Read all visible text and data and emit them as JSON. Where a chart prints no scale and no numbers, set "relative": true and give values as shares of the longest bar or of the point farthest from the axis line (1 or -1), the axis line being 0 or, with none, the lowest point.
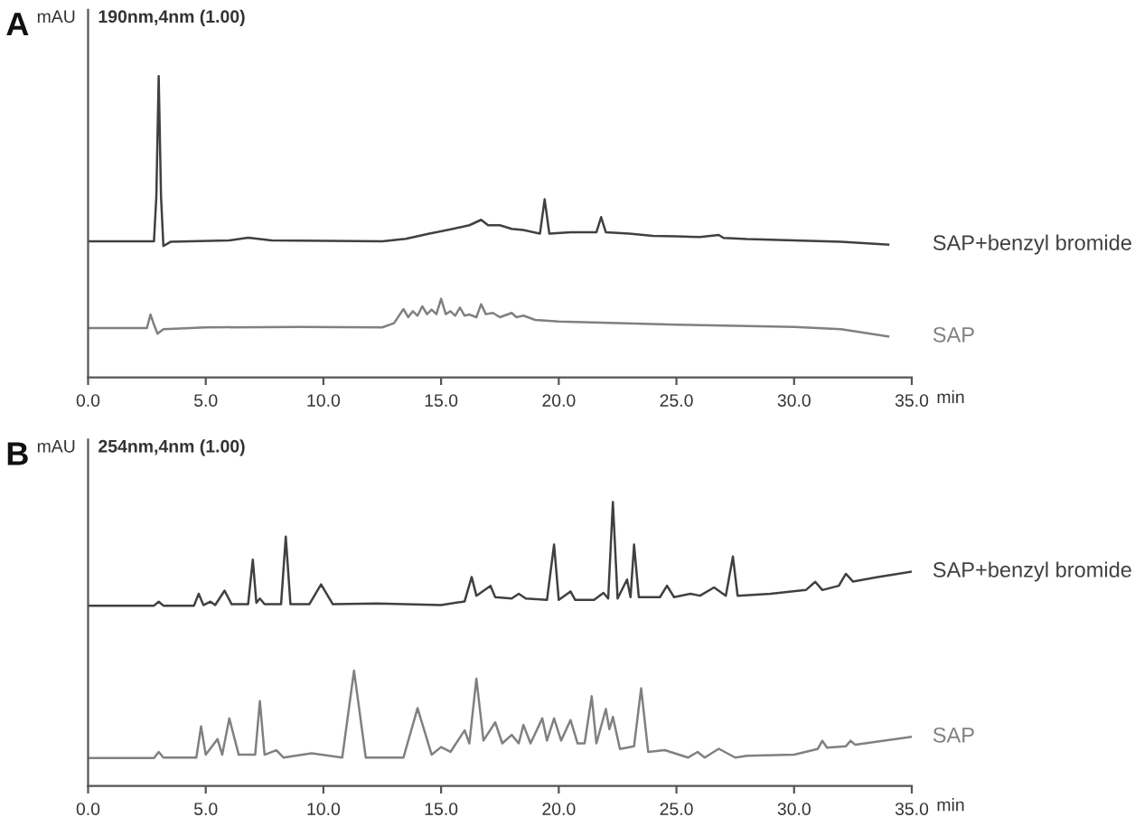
{
  "chart_data": [
    {
      "type": "line",
      "title": "A",
      "subtitle": "190nm,4nm (1.00)",
      "ylabel": "mAU",
      "xlabel": "min",
      "relative": true,
      "xlim": [
        0,
        35
      ],
      "xticks": [
        {
          "value": 0,
          "label": "0.0"
        },
        {
          "value": 5,
          "label": "5.0"
        },
        {
          "value": 10,
          "label": "10.0"
        },
        {
          "value": 15,
          "label": "15.0"
        },
        {
          "value": 20,
          "label": "20.0"
        },
        {
          "value": 25,
          "label": "25.0"
        },
        {
          "value": 30,
          "label": "30.0"
        },
        {
          "value": 35,
          "label": "35.0"
        }
      ],
      "grid": false,
      "legend": false,
      "marker": "none",
      "line_style": "solid",
      "series": [
        {
          "name": "SAP+benzyl bromide",
          "color": "#404040",
          "x": [
            0,
            2.8,
            2.9,
            3.0,
            3.1,
            3.2,
            3.5,
            6.0,
            6.8,
            7.8,
            12.5,
            13.5,
            14.5,
            15.5,
            16.2,
            16.7,
            17.0,
            17.5,
            18.0,
            18.5,
            19.2,
            19.4,
            19.6,
            20.5,
            21.6,
            21.8,
            22.0,
            23.0,
            24.0,
            25.0,
            26.0,
            26.8,
            27.0,
            28.0,
            30.0,
            32.0,
            34.0
          ],
          "values": [
            0.452,
            0.452,
            0.6,
            1.0,
            0.6,
            0.436,
            0.45,
            0.455,
            0.464,
            0.455,
            0.452,
            0.46,
            0.477,
            0.493,
            0.505,
            0.523,
            0.505,
            0.505,
            0.493,
            0.489,
            0.477,
            0.591,
            0.477,
            0.482,
            0.482,
            0.532,
            0.482,
            0.477,
            0.47,
            0.468,
            0.466,
            0.473,
            0.463,
            0.459,
            0.455,
            0.45,
            0.441
          ]
        },
        {
          "name": "SAP",
          "color": "#808080",
          "x": [
            0,
            2.5,
            2.65,
            2.8,
            2.95,
            3.2,
            5.0,
            9.0,
            12.5,
            13.0,
            13.4,
            13.6,
            13.8,
            14.0,
            14.2,
            14.4,
            14.6,
            14.8,
            15.0,
            15.2,
            15.4,
            15.6,
            15.8,
            16.0,
            16.2,
            16.5,
            16.7,
            16.9,
            17.2,
            17.5,
            18.0,
            18.2,
            18.5,
            19.0,
            20.0,
            25.0,
            30.0,
            32.0,
            34.0
          ],
          "values": [
            0.164,
            0.164,
            0.209,
            0.175,
            0.145,
            0.16,
            0.166,
            0.168,
            0.166,
            0.18,
            0.227,
            0.2,
            0.22,
            0.205,
            0.236,
            0.21,
            0.225,
            0.21,
            0.261,
            0.21,
            0.22,
            0.205,
            0.232,
            0.205,
            0.209,
            0.2,
            0.243,
            0.21,
            0.214,
            0.2,
            0.214,
            0.2,
            0.205,
            0.191,
            0.186,
            0.175,
            0.168,
            0.16,
            0.136
          ]
        }
      ]
    },
    {
      "type": "line",
      "title": "B",
      "subtitle": "254nm,4nm (1.00)",
      "ylabel": "mAU",
      "xlabel": "min",
      "relative": true,
      "xlim": [
        0,
        35
      ],
      "xticks": [
        {
          "value": 0,
          "label": "0.0"
        },
        {
          "value": 5,
          "label": "5.0"
        },
        {
          "value": 10,
          "label": "10.0"
        },
        {
          "value": 15,
          "label": "15.0"
        },
        {
          "value": 20,
          "label": "20.0"
        },
        {
          "value": 25,
          "label": "25.0"
        },
        {
          "value": 30,
          "label": "30.0"
        },
        {
          "value": 35,
          "label": "35.0"
        }
      ],
      "grid": false,
      "legend": false,
      "marker": "none",
      "line_style": "solid",
      "series": [
        {
          "name": "SAP+benzyl bromide",
          "color": "#404040",
          "x": [
            0,
            2.8,
            3.0,
            3.2,
            4.5,
            4.7,
            4.9,
            5.2,
            5.4,
            5.8,
            6.1,
            6.8,
            7.0,
            7.15,
            7.3,
            7.5,
            8.2,
            8.4,
            8.6,
            9.4,
            9.9,
            10.4,
            12.3,
            15.0,
            16.0,
            16.3,
            16.5,
            17.1,
            17.3,
            18.0,
            18.3,
            18.6,
            19.5,
            19.8,
            20.0,
            20.5,
            20.7,
            21.5,
            21.9,
            22.1,
            22.3,
            22.5,
            22.9,
            23.05,
            23.2,
            23.4,
            24.3,
            24.6,
            24.9,
            25.6,
            26.0,
            26.6,
            27.1,
            27.4,
            27.6,
            29.0,
            30.5,
            30.9,
            31.2,
            31.9,
            32.2,
            32.5,
            33.5,
            35.0
          ],
          "values": [
            0.635,
            0.635,
            0.649,
            0.635,
            0.635,
            0.677,
            0.637,
            0.649,
            0.637,
            0.688,
            0.64,
            0.64,
            0.797,
            0.645,
            0.66,
            0.64,
            0.64,
            0.878,
            0.64,
            0.64,
            0.71,
            0.64,
            0.643,
            0.637,
            0.65,
            0.736,
            0.67,
            0.705,
            0.665,
            0.66,
            0.677,
            0.66,
            0.655,
            0.85,
            0.655,
            0.685,
            0.655,
            0.655,
            0.68,
            0.66,
            1.0,
            0.66,
            0.727,
            0.665,
            0.85,
            0.665,
            0.665,
            0.705,
            0.665,
            0.677,
            0.67,
            0.699,
            0.67,
            0.808,
            0.67,
            0.677,
            0.69,
            0.719,
            0.69,
            0.705,
            0.747,
            0.72,
            0.735,
            0.755
          ]
        },
        {
          "name": "SAP",
          "color": "#808080",
          "x": [
            0,
            2.8,
            3.0,
            3.2,
            4.6,
            4.8,
            5.0,
            5.5,
            5.7,
            6.0,
            6.4,
            7.1,
            7.3,
            7.5,
            8.0,
            8.3,
            9.5,
            10.8,
            11.3,
            11.8,
            13.4,
            14.0,
            14.6,
            15.0,
            15.4,
            16.0,
            16.2,
            16.5,
            16.8,
            17.3,
            17.6,
            18.0,
            18.3,
            18.5,
            18.8,
            19.3,
            19.5,
            19.8,
            20.1,
            20.5,
            20.8,
            21.1,
            21.4,
            21.6,
            22.0,
            22.15,
            22.3,
            22.6,
            23.2,
            23.5,
            23.8,
            24.5,
            25.5,
            25.9,
            26.2,
            26.8,
            27.5,
            28.0,
            30.0,
            31.0,
            31.2,
            31.4,
            32.2,
            32.4,
            32.6,
            35.0
          ],
          "values": [
            0.098,
            0.098,
            0.12,
            0.1,
            0.1,
            0.21,
            0.11,
            0.165,
            0.11,
            0.238,
            0.11,
            0.11,
            0.299,
            0.11,
            0.126,
            0.1,
            0.115,
            0.1,
            0.406,
            0.1,
            0.1,
            0.274,
            0.11,
            0.137,
            0.12,
            0.196,
            0.15,
            0.378,
            0.16,
            0.224,
            0.15,
            0.18,
            0.15,
            0.215,
            0.15,
            0.238,
            0.16,
            0.238,
            0.16,
            0.232,
            0.15,
            0.15,
            0.316,
            0.15,
            0.271,
            0.2,
            0.243,
            0.13,
            0.14,
            0.344,
            0.12,
            0.126,
            0.1,
            0.12,
            0.1,
            0.131,
            0.1,
            0.106,
            0.11,
            0.13,
            0.159,
            0.135,
            0.14,
            0.159,
            0.145,
            0.173
          ]
        }
      ]
    }
  ]
}
